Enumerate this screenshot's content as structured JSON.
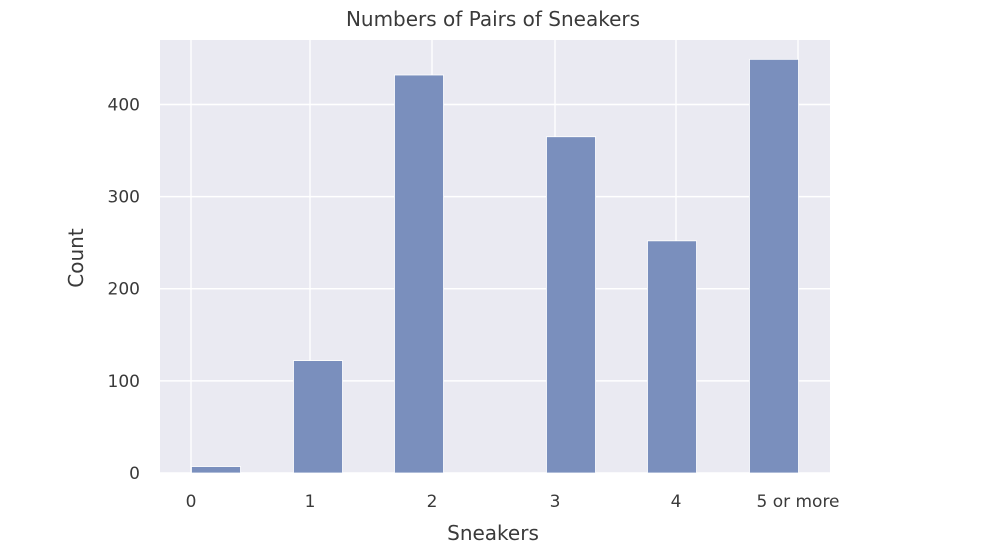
{
  "chart_data": {
    "type": "bar",
    "title": "Numbers of Pairs of Sneakers",
    "xlabel": "Sneakers",
    "ylabel": "Count",
    "categories": [
      "0",
      "1",
      "2",
      "3",
      "4",
      "5 or more"
    ],
    "values": [
      7,
      122,
      432,
      365,
      252,
      449
    ],
    "ylim": [
      0,
      470
    ],
    "yticks": [
      0,
      100,
      200,
      300,
      400
    ],
    "grid": true,
    "bar_color": "#7a8fbd",
    "background_color": "#eaeaf2"
  }
}
